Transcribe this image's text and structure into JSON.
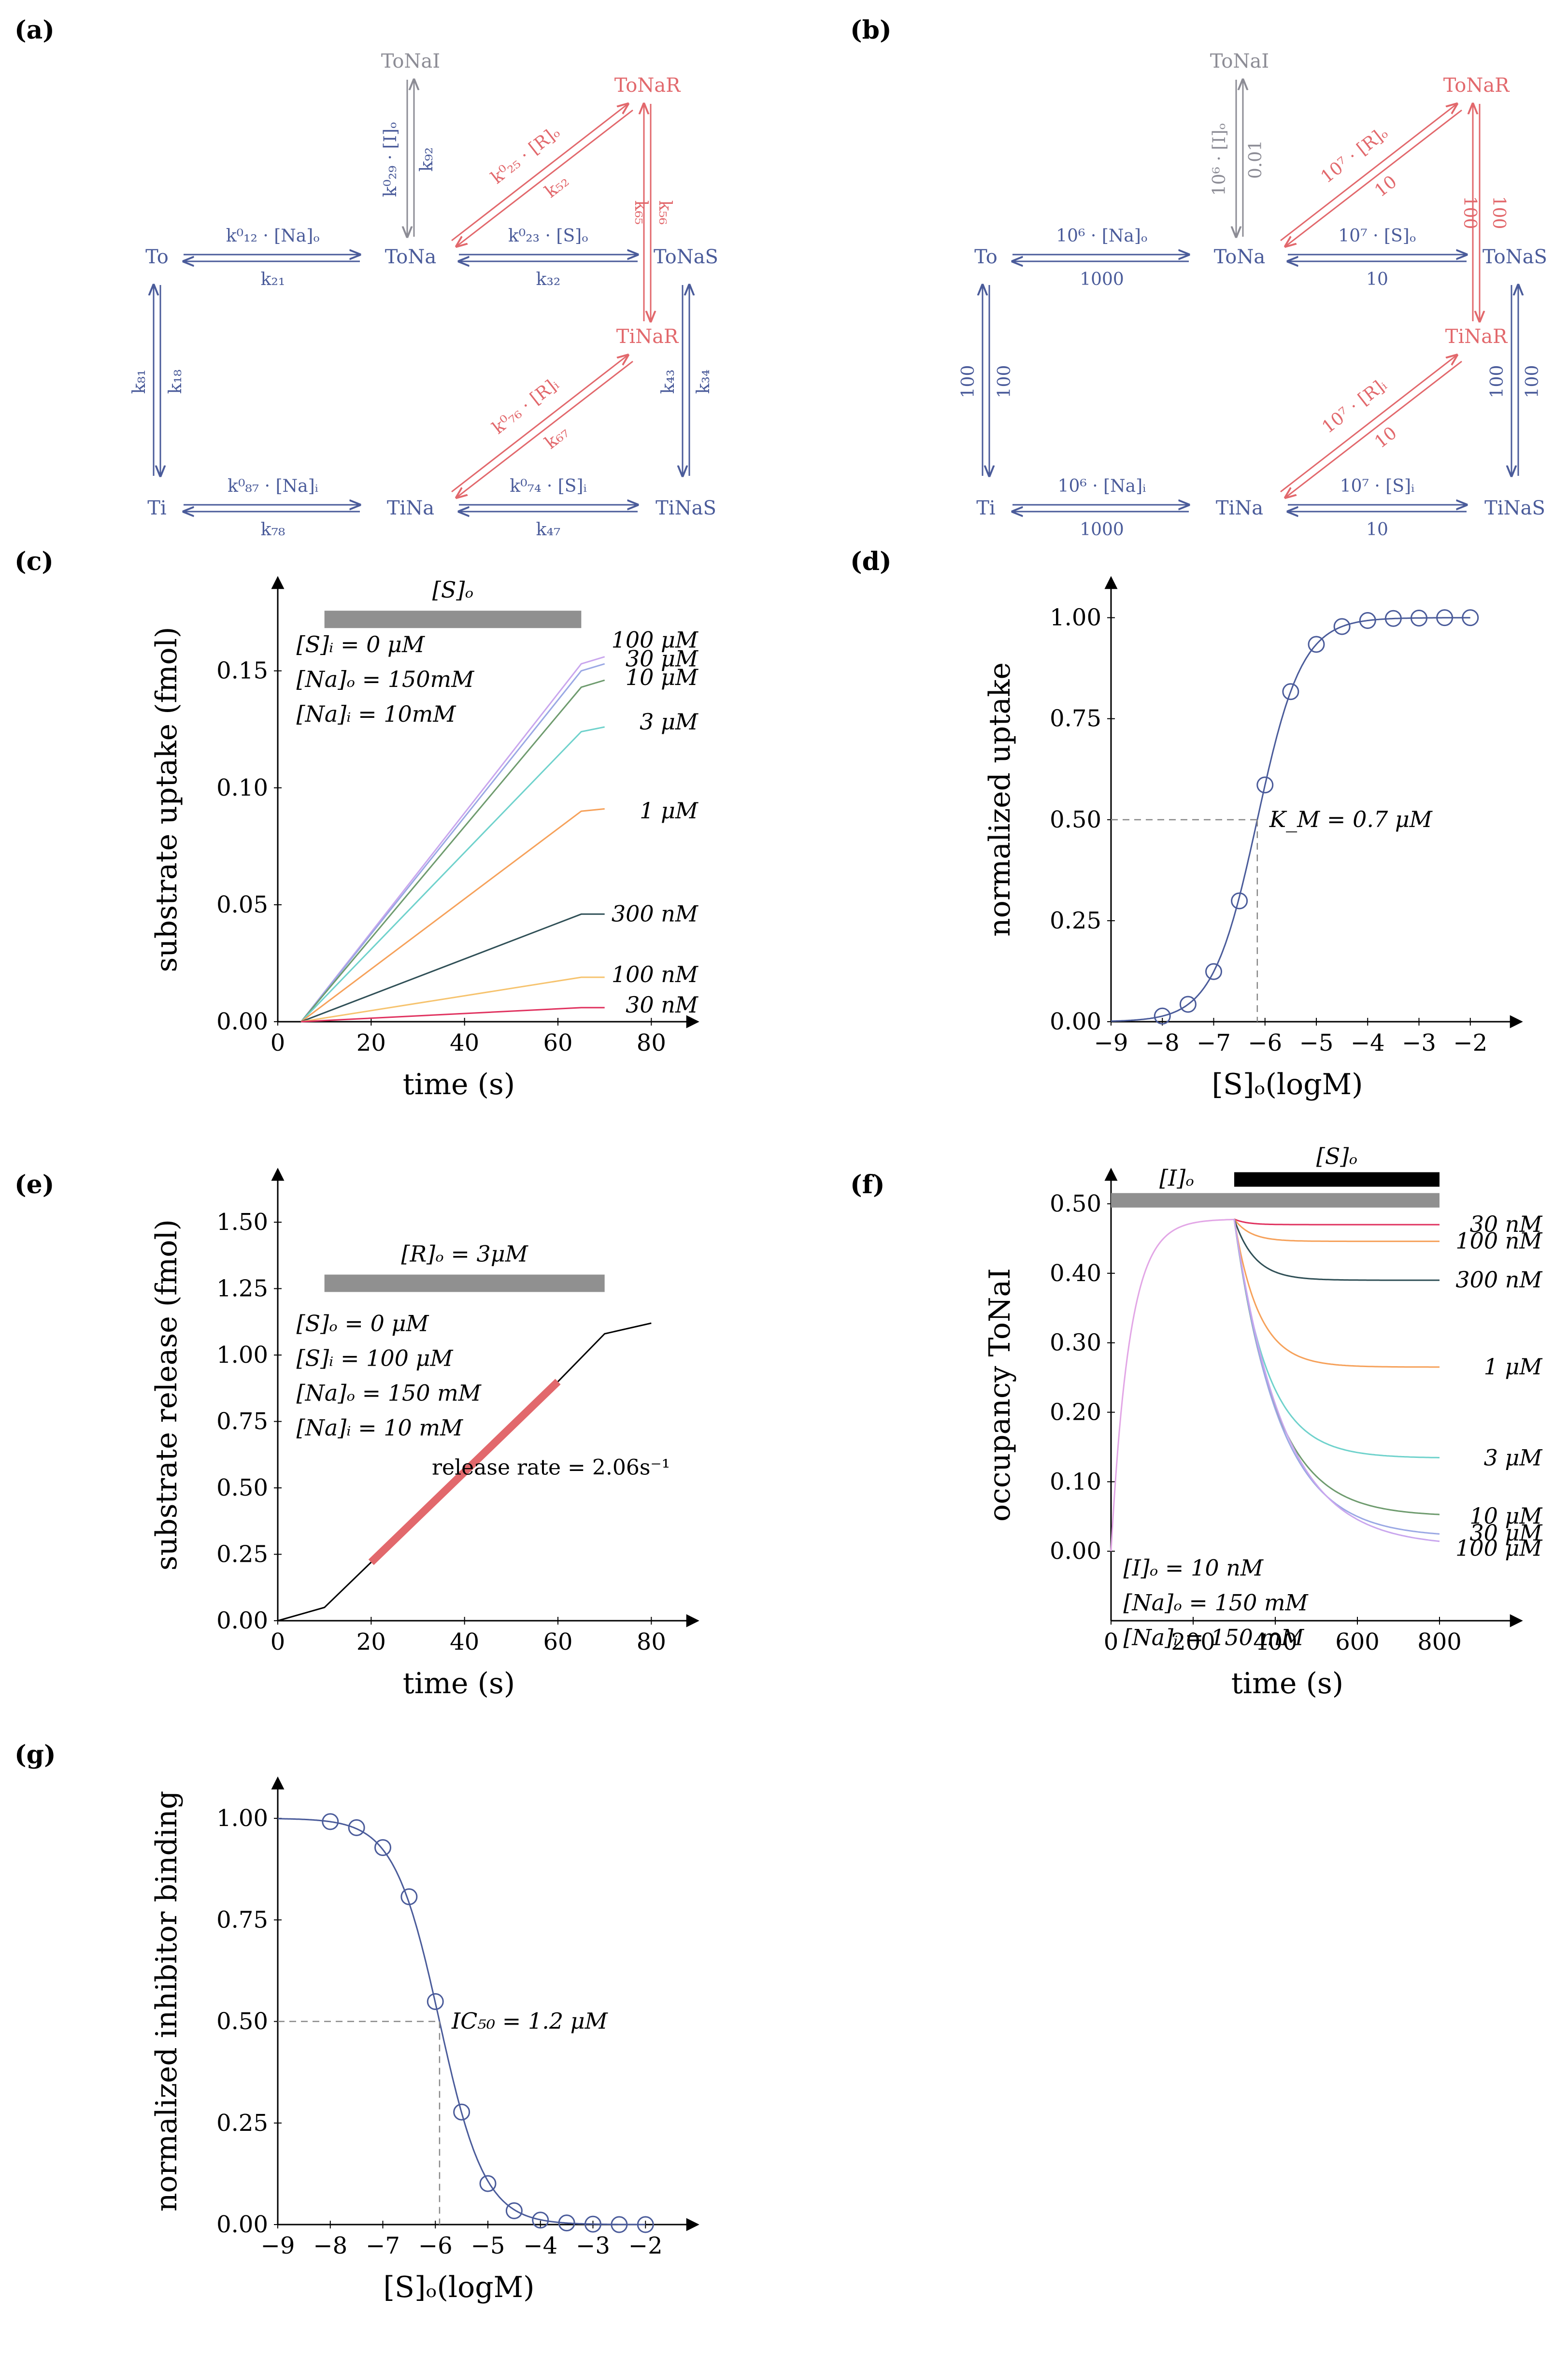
{
  "panel_labels": [
    "(a)",
    "(b)",
    "(c)",
    "(d)",
    "(e)",
    "(f)",
    "(g)"
  ],
  "scheme_a": {
    "nodes": {
      "To": "To",
      "ToNa": "ToNa",
      "ToNaS": "ToNaS",
      "Ti": "Ti",
      "TiNa": "TiNa",
      "TiNaS": "TiNaS",
      "ToNaI": "ToNaI",
      "ToNaR": "ToNaR",
      "TiNaR": "TiNaR"
    },
    "rates": {
      "r12": "k⁰₁₂ · [Na]ₒ",
      "r21": "k₂₁",
      "r23": "k⁰₂₃ · [S]ₒ",
      "r32": "k₃₂",
      "r87": "k⁰₈₇ · [Na]ᵢ",
      "r78": "k₇₈",
      "r74": "k⁰₇₄ · [S]ᵢ",
      "r47": "k₄₇",
      "r81": "k₈₁",
      "r18": "k₁₈",
      "r43": "k₄₃",
      "r34": "k₃₄",
      "r29": "k⁰₂₉ · [I]ₒ",
      "r92": "k₉₂",
      "r25": "k⁰₂₅ · [R]ₒ",
      "r52": "k₅₂",
      "r65": "k₆₅",
      "r56": "k₅₆",
      "r76": "k⁰₇₆ · [R]ᵢ",
      "r67": "k₆₇"
    }
  },
  "scheme_b": {
    "nodes": {
      "To": "To",
      "ToNa": "ToNa",
      "ToNaS": "ToNaS",
      "Ti": "Ti",
      "TiNa": "TiNa",
      "TiNaS": "TiNaS",
      "ToNaI": "ToNaI",
      "ToNaR": "ToNaR",
      "TiNaR": "TiNaR"
    },
    "rates": {
      "r12": "10⁶ · [Na]ₒ",
      "r21": "1000",
      "r23": "10⁷ · [S]ₒ",
      "r32": "10",
      "r87": "10⁶ · [Na]ᵢ",
      "r78": "1000",
      "r74": "10⁷ · [S]ᵢ",
      "r47": "10",
      "r81": "100",
      "r18": "100",
      "r43": "100",
      "r34": "100",
      "r29": "10⁶ · [I]ₒ",
      "r92": "0.01",
      "r25": "10⁷ · [R]ₒ",
      "r52": "10",
      "r65": "100",
      "r56": "100",
      "r76": "10⁷ · [R]ᵢ",
      "r67": "10"
    }
  },
  "chart_data": [
    {
      "id": "c",
      "type": "line",
      "xlabel": "time (s)",
      "ylabel": "substrate uptake (fmol)",
      "xlim": [
        0,
        90
      ],
      "ylim": [
        0,
        0.19
      ],
      "xticks": [
        0,
        20,
        40,
        60,
        80
      ],
      "yticks": [
        0.0,
        0.05,
        0.1,
        0.15
      ],
      "ytick_labels": [
        "0.00",
        "0.05",
        "0.10",
        "0.15"
      ],
      "bar": {
        "label": "[S]ₒ",
        "x": [
          10,
          65
        ]
      },
      "conditions": [
        "[S]ᵢ = 0 μM",
        "[Na]ₒ = 150mM",
        "[Na]ᵢ = 10mM"
      ],
      "series": [
        {
          "name": "100 μM",
          "color": "#c9a6ee",
          "x": [
            5,
            65,
            70
          ],
          "y": [
            0,
            0.153,
            0.156
          ]
        },
        {
          "name": "30 μM",
          "color": "#9aa8e4",
          "x": [
            5,
            65,
            70
          ],
          "y": [
            0,
            0.15,
            0.153
          ]
        },
        {
          "name": "10 μM",
          "color": "#6e9b6e",
          "x": [
            5,
            65,
            70
          ],
          "y": [
            0,
            0.143,
            0.146
          ]
        },
        {
          "name": "3 μM",
          "color": "#6fd2cc",
          "x": [
            5,
            65,
            70
          ],
          "y": [
            0,
            0.124,
            0.126
          ]
        },
        {
          "name": "1 μM",
          "color": "#f6a15a",
          "x": [
            5,
            65,
            70
          ],
          "y": [
            0,
            0.09,
            0.091
          ]
        },
        {
          "name": "300 nM",
          "color": "#2f4f56",
          "x": [
            5,
            65,
            70
          ],
          "y": [
            0,
            0.046,
            0.046
          ]
        },
        {
          "name": "100 nM",
          "color": "#f6c36e",
          "x": [
            5,
            65,
            70
          ],
          "y": [
            0,
            0.019,
            0.019
          ]
        },
        {
          "name": "30 nM",
          "color": "#e0325f",
          "x": [
            5,
            65,
            70
          ],
          "y": [
            0,
            0.006,
            0.006
          ]
        }
      ]
    },
    {
      "id": "d",
      "type": "line",
      "xlabel": "[S]ₒ(logM)",
      "ylabel": "normalized uptake",
      "xlim": [
        -9,
        -1
      ],
      "ylim": [
        0,
        1.1
      ],
      "xticks": [
        -9,
        -8,
        -7,
        -6,
        -5,
        -4,
        -3,
        -2
      ],
      "xtick_labels": [
        "−9",
        "−8",
        "−7",
        "−6",
        "−5",
        "−4",
        "−3",
        "−2"
      ],
      "yticks": [
        0,
        0.25,
        0.5,
        0.75,
        1.0
      ],
      "ytick_labels": [
        "0.00",
        "0.25",
        "0.50",
        "0.75",
        "1.00"
      ],
      "curve": {
        "type": "hill-increasing",
        "log_half": -6.15,
        "slope": 1.0,
        "x_range": [
          -9,
          -2
        ]
      },
      "points_x": [
        -8,
        -7.5,
        -7,
        -6.5,
        -6,
        -5.5,
        -5,
        -4.5,
        -4,
        -3.5,
        -3,
        -2.5,
        -2
      ],
      "points_y": [
        0.014,
        0.043,
        0.124,
        0.299,
        0.586,
        0.817,
        0.934,
        0.978,
        0.993,
        0.998,
        0.999,
        1.0,
        1.0
      ],
      "marker": {
        "x": -6.15,
        "y": 0.5,
        "label": "K_M = 0.7 μM"
      }
    },
    {
      "id": "e",
      "type": "line",
      "xlabel": "time (s)",
      "ylabel": "substrate release (fmol)",
      "xlim": [
        0,
        90
      ],
      "ylim": [
        0,
        1.7
      ],
      "xticks": [
        0,
        20,
        40,
        60,
        80
      ],
      "yticks": [
        0,
        0.25,
        0.5,
        0.75,
        1.0,
        1.25,
        1.5
      ],
      "ytick_labels": [
        "0.00",
        "0.25",
        "0.50",
        "0.75",
        "1.00",
        "1.25",
        "1.50"
      ],
      "bar": {
        "label": "[R]ₒ = 3μM",
        "x": [
          10,
          70
        ]
      },
      "conditions": [
        "[S]ₒ = 0 μM",
        "[S]ᵢ = 100 μM",
        "[Na]ₒ = 150 mM",
        "[Na]ᵢ = 10 mM"
      ],
      "series": [
        {
          "name": "release",
          "color": "#000000",
          "x": [
            0,
            10,
            20,
            60,
            70,
            80
          ],
          "y": [
            0,
            0.05,
            0.22,
            0.9,
            1.08,
            1.12
          ]
        },
        {
          "name": "fit",
          "color": "#e2686c",
          "x": [
            20,
            60
          ],
          "y": [
            0.22,
            0.9
          ]
        }
      ],
      "fit_label": "release rate = 2.06s⁻¹"
    },
    {
      "id": "f",
      "type": "line",
      "xlabel": "time (s)",
      "ylabel": "occupancy ToNaI",
      "xlim": [
        0,
        1000
      ],
      "ylim": [
        -0.1,
        0.55
      ],
      "xticks": [
        0,
        200,
        400,
        600,
        800
      ],
      "yticks": [
        0,
        0.1,
        0.2,
        0.3,
        0.4,
        0.5
      ],
      "ytick_labels": [
        "0.00",
        "0.10",
        "0.20",
        "0.30",
        "0.40",
        "0.50"
      ],
      "bars": [
        {
          "label": "[I]ₒ",
          "x": [
            0,
            800
          ],
          "color": "#909090"
        },
        {
          "label": "[S]ₒ",
          "x": [
            300,
            800
          ],
          "color": "#000000"
        }
      ],
      "conditions": [
        "[I]ₒ = 10 nM",
        "[Na]ₒ = 150 mM",
        "[Na]ᵢ = 150 mM"
      ],
      "rise": {
        "peak": 0.478,
        "tau": 45,
        "until": 300,
        "color": "#e2a6e6"
      },
      "series": [
        {
          "name": "30 nM",
          "color": "#e0325f",
          "final": 0.47,
          "tau": 30
        },
        {
          "name": "100 nM",
          "color": "#f6a15a",
          "final": 0.446,
          "tau": 40
        },
        {
          "name": "300 nM",
          "color": "#2f4f56",
          "final": 0.39,
          "tau": 50
        },
        {
          "name": "1 μM",
          "color": "#f6a15a",
          "final": 0.265,
          "tau": 60
        },
        {
          "name": "3 μM",
          "color": "#6fd2cc",
          "final": 0.134,
          "tau": 80
        },
        {
          "name": "10 μM",
          "color": "#6e9b6e",
          "final": 0.05,
          "tau": 100
        },
        {
          "name": "30 μM",
          "color": "#9aa8e4",
          "final": 0.02,
          "tau": 110
        },
        {
          "name": "100 μM",
          "color": "#c9a6ee",
          "final": 0.007,
          "tau": 120
        }
      ]
    },
    {
      "id": "g",
      "type": "line",
      "xlabel": "[S]ₒ(logM)",
      "ylabel": "normalized inhibitor binding",
      "xlim": [
        -9,
        -1
      ],
      "ylim": [
        0,
        1.1
      ],
      "xticks": [
        -9,
        -8,
        -7,
        -6,
        -5,
        -4,
        -3,
        -2
      ],
      "xtick_labels": [
        "−9",
        "−8",
        "−7",
        "−6",
        "−5",
        "−4",
        "−3",
        "−2"
      ],
      "yticks": [
        0,
        0.25,
        0.5,
        0.75,
        1.0
      ],
      "ytick_labels": [
        "0.00",
        "0.25",
        "0.50",
        "0.75",
        "1.00"
      ],
      "curve": {
        "type": "hill-decreasing",
        "log_half": -5.92,
        "slope": 1.0,
        "x_range": [
          -9,
          -2
        ]
      },
      "points_x": [
        -8,
        -7.5,
        -7,
        -6.5,
        -6,
        -5.5,
        -5,
        -4.5,
        -4,
        -3.5,
        -3,
        -2.5,
        -2
      ],
      "points_y": [
        0.992,
        0.977,
        0.928,
        0.807,
        0.549,
        0.277,
        0.101,
        0.034,
        0.011,
        0.004,
        0.001,
        0.0,
        0.0
      ],
      "marker": {
        "x": -5.92,
        "y": 0.5,
        "label": "IC₅₀ = 1.2 μM"
      }
    }
  ]
}
